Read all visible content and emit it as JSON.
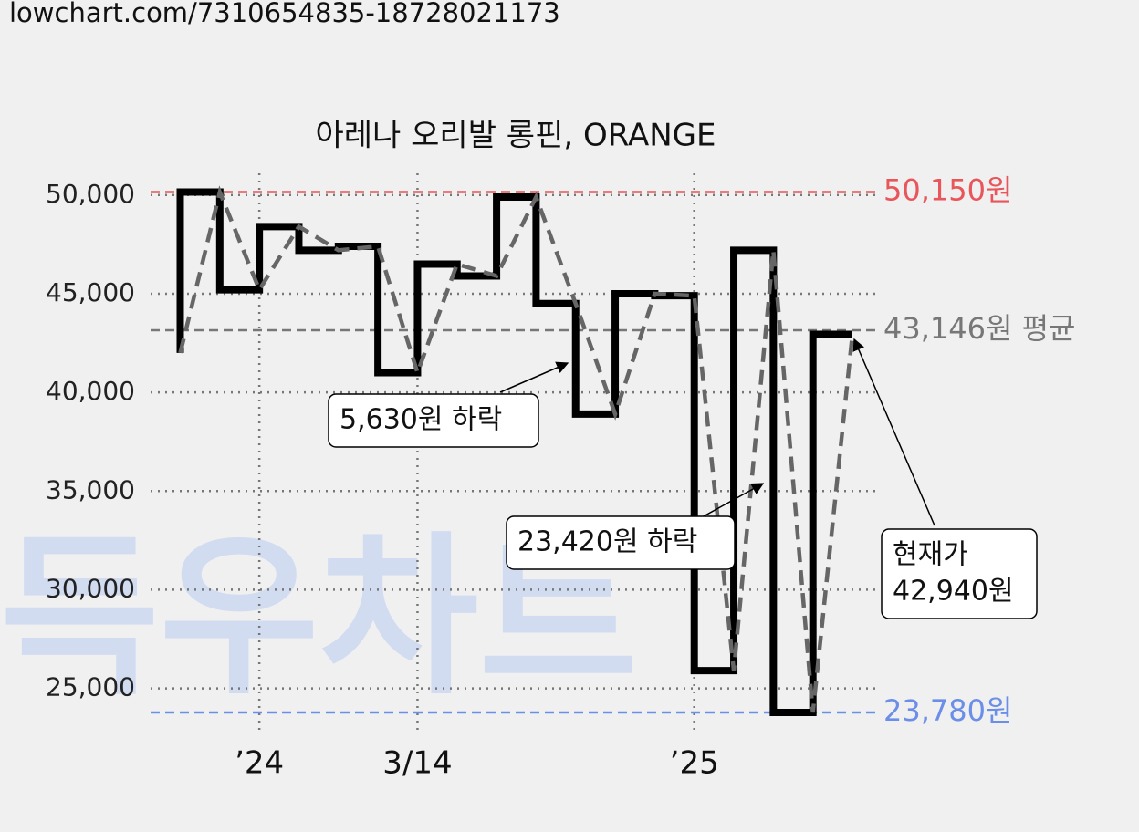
{
  "url": "lowchart.com/7310654835-18728021173",
  "watermark": "득우차트",
  "chart_data": {
    "type": "line",
    "title": "아레나 오리발 롱핀, ORANGE",
    "step": true,
    "x": [
      0,
      1,
      2,
      3,
      4,
      5,
      6,
      7,
      8,
      9,
      10,
      11,
      12,
      13,
      14,
      15,
      16,
      17
    ],
    "series": [
      {
        "color": "#000000",
        "dash_color": "#666666",
        "values": [
          42000,
          50150,
          45200,
          48400,
          47200,
          47400,
          41000,
          46500,
          45900,
          49900,
          44500,
          38900,
          45000,
          44900,
          25900,
          47200,
          23780,
          42940
        ]
      }
    ],
    "xlim": [
      -0.75,
      17.6
    ],
    "xticks": [
      {
        "value": 2,
        "label": "’24"
      },
      {
        "value": 6,
        "label": "3/14"
      },
      {
        "value": 13,
        "label": "’25"
      }
    ],
    "ylim": [
      22900,
      51100
    ],
    "yticks": [
      {
        "value": 25000,
        "label": "25,000"
      },
      {
        "value": 30000,
        "label": "30,000"
      },
      {
        "value": 35000,
        "label": "35,000"
      },
      {
        "value": 40000,
        "label": "40,000"
      },
      {
        "value": 45000,
        "label": "45,000"
      },
      {
        "value": 50000,
        "label": "50,000"
      }
    ],
    "grid": true,
    "reference_lines": [
      {
        "value": 50150,
        "label": "50,150원",
        "color": "#e8555a"
      },
      {
        "value": 43146,
        "label": "43,146원 평균",
        "color": "#777777"
      },
      {
        "value": 23780,
        "label": "23,780원",
        "color": "#6b8ee8"
      }
    ],
    "annotations": [
      {
        "lines": [
          "5,630원 하락"
        ]
      },
      {
        "lines": [
          "23,420원 하락"
        ]
      },
      {
        "lines": [
          "현재가",
          "42,940원"
        ]
      }
    ]
  }
}
